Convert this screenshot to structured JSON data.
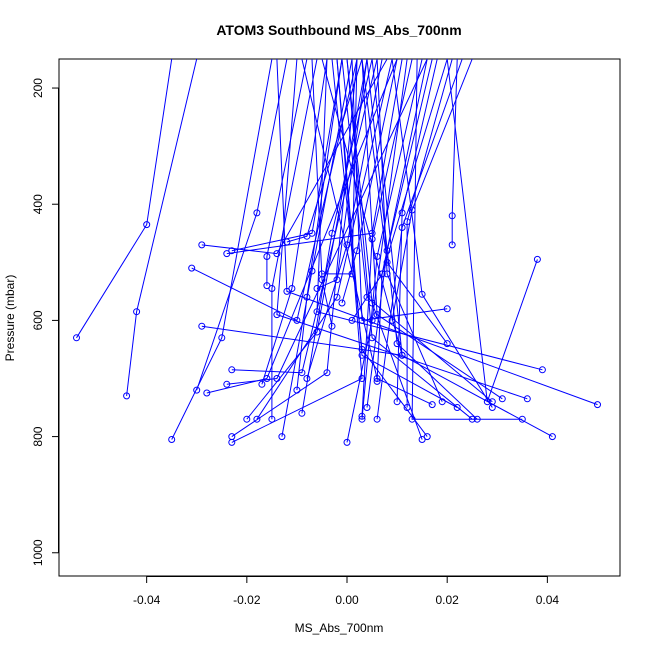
{
  "chart_data": {
    "type": "line",
    "title": "ATOM3 Southbound MS_Abs_700nm",
    "xlabel": "MS_Abs_700nm",
    "ylabel": "Pressure (mbar)",
    "xlim": [
      -0.0575,
      0.0545
    ],
    "ylim": [
      1040,
      150
    ],
    "y_reversed": true,
    "x_ticks": [
      -0.04,
      -0.02,
      0.0,
      0.02,
      0.04
    ],
    "x_tick_labels": [
      "-0.04",
      "-0.02",
      "0.00",
      "0.02",
      "0.04"
    ],
    "y_ticks": [
      200,
      400,
      600,
      800,
      1000
    ],
    "y_tick_labels": [
      "200",
      "400",
      "600",
      "800",
      "1000"
    ],
    "grid": false,
    "legend": "none",
    "color": "#0000ff",
    "series": [
      {
        "points": [
          [
            -0.054,
            630
          ],
          [
            -0.04,
            435
          ],
          [
            -0.035,
            150
          ]
        ]
      },
      {
        "points": [
          [
            -0.044,
            730
          ],
          [
            -0.042,
            585
          ],
          [
            -0.03,
            150
          ]
        ]
      },
      {
        "points": [
          [
            -0.035,
            805
          ],
          [
            -0.025,
            630
          ],
          [
            -0.015,
            150
          ]
        ]
      },
      {
        "points": [
          [
            -0.031,
            510
          ],
          [
            -0.01,
            600
          ],
          [
            0.002,
            150
          ]
        ]
      },
      {
        "points": [
          [
            -0.029,
            610
          ],
          [
            0.011,
            660
          ],
          [
            -0.005,
            150
          ]
        ]
      },
      {
        "points": [
          [
            -0.029,
            470
          ],
          [
            -0.014,
            485
          ],
          [
            0.008,
            150
          ]
        ]
      },
      {
        "points": [
          [
            -0.03,
            720
          ],
          [
            -0.018,
            415
          ],
          [
            -0.012,
            150
          ]
        ]
      },
      {
        "points": [
          [
            -0.028,
            725
          ],
          [
            -0.016,
            700
          ],
          [
            0.01,
            150
          ]
        ]
      },
      {
        "points": [
          [
            -0.023,
            800
          ],
          [
            -0.004,
            690
          ],
          [
            0.002,
            150
          ]
        ]
      },
      {
        "points": [
          [
            -0.023,
            810
          ],
          [
            0.003,
            700
          ],
          [
            -0.002,
            150
          ]
        ]
      },
      {
        "points": [
          [
            -0.024,
            485
          ],
          [
            0.005,
            450
          ],
          [
            0.011,
            150
          ]
        ]
      },
      {
        "points": [
          [
            -0.023,
            480
          ],
          [
            -0.007,
            450
          ],
          [
            -0.001,
            150
          ]
        ]
      },
      {
        "points": [
          [
            -0.024,
            710
          ],
          [
            -0.014,
            700
          ],
          [
            0.016,
            150
          ]
        ]
      },
      {
        "points": [
          [
            -0.023,
            685
          ],
          [
            -0.009,
            690
          ],
          [
            0.006,
            150
          ]
        ]
      },
      {
        "points": [
          [
            -0.02,
            770
          ],
          [
            -0.006,
            620
          ],
          [
            0.004,
            150
          ]
        ]
      },
      {
        "points": [
          [
            -0.018,
            770
          ],
          [
            -0.002,
            560
          ],
          [
            0.009,
            150
          ]
        ]
      },
      {
        "points": [
          [
            -0.017,
            710
          ],
          [
            -0.011,
            545
          ],
          [
            -0.004,
            150
          ]
        ]
      },
      {
        "points": [
          [
            -0.016,
            540
          ],
          [
            -0.016,
            490
          ],
          [
            -0.008,
            150
          ]
        ]
      },
      {
        "points": [
          [
            -0.015,
            770
          ],
          [
            -0.015,
            545
          ],
          [
            -0.006,
            150
          ]
        ]
      },
      {
        "points": [
          [
            -0.013,
            800
          ],
          [
            -0.007,
            515
          ],
          [
            0.001,
            150
          ]
        ]
      },
      {
        "points": [
          [
            -0.012,
            465
          ],
          [
            -0.008,
            455
          ],
          [
            0.003,
            150
          ]
        ]
      },
      {
        "points": [
          [
            -0.01,
            720
          ],
          [
            -0.008,
            560
          ],
          [
            -0.001,
            150
          ]
        ]
      },
      {
        "points": [
          [
            -0.009,
            760
          ],
          [
            -0.003,
            450
          ],
          [
            0.005,
            150
          ]
        ]
      },
      {
        "points": [
          [
            -0.008,
            700
          ],
          [
            0.0,
            470
          ],
          [
            0.007,
            150
          ]
        ]
      },
      {
        "points": [
          [
            -0.006,
            545
          ],
          [
            -0.002,
            530
          ],
          [
            0.004,
            150
          ]
        ]
      },
      {
        "points": [
          [
            -0.005,
            520
          ],
          [
            0.001,
            520
          ],
          [
            0.002,
            150
          ]
        ]
      },
      {
        "points": [
          [
            -0.003,
            610
          ],
          [
            -0.005,
            530
          ],
          [
            -0.007,
            150
          ]
        ]
      },
      {
        "points": [
          [
            -0.001,
            570
          ],
          [
            0.002,
            480
          ],
          [
            0.01,
            150
          ]
        ]
      },
      {
        "points": [
          [
            0.0,
            810
          ],
          [
            0.005,
            600
          ],
          [
            0.012,
            150
          ]
        ]
      },
      {
        "points": [
          [
            0.001,
            600
          ],
          [
            0.007,
            520
          ],
          [
            0.016,
            150
          ]
        ]
      },
      {
        "points": [
          [
            0.003,
            770
          ],
          [
            0.006,
            490
          ],
          [
            0.015,
            150
          ]
        ]
      },
      {
        "points": [
          [
            0.003,
            765
          ],
          [
            0.005,
            460
          ],
          [
            0.013,
            150
          ]
        ]
      },
      {
        "points": [
          [
            0.004,
            750
          ],
          [
            0.008,
            480
          ],
          [
            0.017,
            150
          ]
        ]
      },
      {
        "points": [
          [
            0.006,
            705
          ],
          [
            0.007,
            520
          ],
          [
            0.02,
            150
          ]
        ]
      },
      {
        "points": [
          [
            0.006,
            770
          ],
          [
            0.011,
            440
          ],
          [
            0.023,
            150
          ]
        ]
      },
      {
        "points": [
          [
            0.009,
            600
          ],
          [
            0.013,
            410
          ],
          [
            0.025,
            150
          ]
        ]
      },
      {
        "points": [
          [
            0.01,
            740
          ],
          [
            0.011,
            415
          ],
          [
            0.018,
            150
          ]
        ]
      },
      {
        "points": [
          [
            0.012,
            750
          ],
          [
            0.012,
            430
          ],
          [
            0.021,
            150
          ]
        ]
      },
      {
        "points": [
          [
            0.015,
            805
          ],
          [
            0.005,
            570
          ],
          [
            0.0,
            150
          ]
        ]
      },
      {
        "points": [
          [
            0.016,
            800
          ],
          [
            0.003,
            650
          ],
          [
            -0.003,
            150
          ]
        ]
      },
      {
        "points": [
          [
            0.017,
            745
          ],
          [
            0.006,
            700
          ],
          [
            -0.009,
            150
          ]
        ]
      },
      {
        "points": [
          [
            0.019,
            740
          ],
          [
            0.008,
            520
          ],
          [
            0.006,
            150
          ]
        ]
      },
      {
        "points": [
          [
            0.02,
            580
          ],
          [
            0.003,
            600
          ],
          [
            0.001,
            150
          ]
        ]
      },
      {
        "points": [
          [
            0.02,
            640
          ],
          [
            0.008,
            500
          ],
          [
            0.003,
            150
          ]
        ]
      },
      {
        "points": [
          [
            0.021,
            470
          ],
          [
            0.021,
            420
          ],
          [
            0.022,
            150
          ]
        ]
      },
      {
        "points": [
          [
            0.022,
            750
          ],
          [
            0.003,
            660
          ],
          [
            -0.002,
            150
          ]
        ]
      },
      {
        "points": [
          [
            0.025,
            770
          ],
          [
            0.005,
            630
          ],
          [
            0.0,
            150
          ]
        ]
      },
      {
        "points": [
          [
            0.026,
            770
          ],
          [
            0.01,
            640
          ],
          [
            0.004,
            150
          ]
        ]
      },
      {
        "points": [
          [
            0.029,
            740
          ],
          [
            0.004,
            560
          ],
          [
            -0.001,
            150
          ]
        ]
      },
      {
        "points": [
          [
            0.029,
            750
          ],
          [
            0.015,
            555
          ],
          [
            0.009,
            150
          ]
        ]
      },
      {
        "points": [
          [
            0.031,
            735
          ],
          [
            0.006,
            590
          ],
          [
            0.003,
            150
          ]
        ]
      },
      {
        "points": [
          [
            0.035,
            770
          ],
          [
            0.013,
            770
          ],
          [
            0.014,
            150
          ]
        ]
      },
      {
        "points": [
          [
            0.036,
            735
          ],
          [
            -0.014,
            590
          ],
          [
            -0.01,
            150
          ]
        ]
      },
      {
        "points": [
          [
            0.038,
            495
          ],
          [
            0.028,
            740
          ],
          [
            0.02,
            150
          ]
        ]
      },
      {
        "points": [
          [
            0.039,
            685
          ],
          [
            -0.006,
            585
          ],
          [
            -0.004,
            150
          ]
        ]
      },
      {
        "points": [
          [
            0.041,
            800
          ],
          [
            0.011,
            660
          ],
          [
            0.005,
            150
          ]
        ]
      },
      {
        "points": [
          [
            0.05,
            745
          ],
          [
            -0.012,
            550
          ],
          [
            -0.014,
            150
          ]
        ]
      }
    ]
  }
}
